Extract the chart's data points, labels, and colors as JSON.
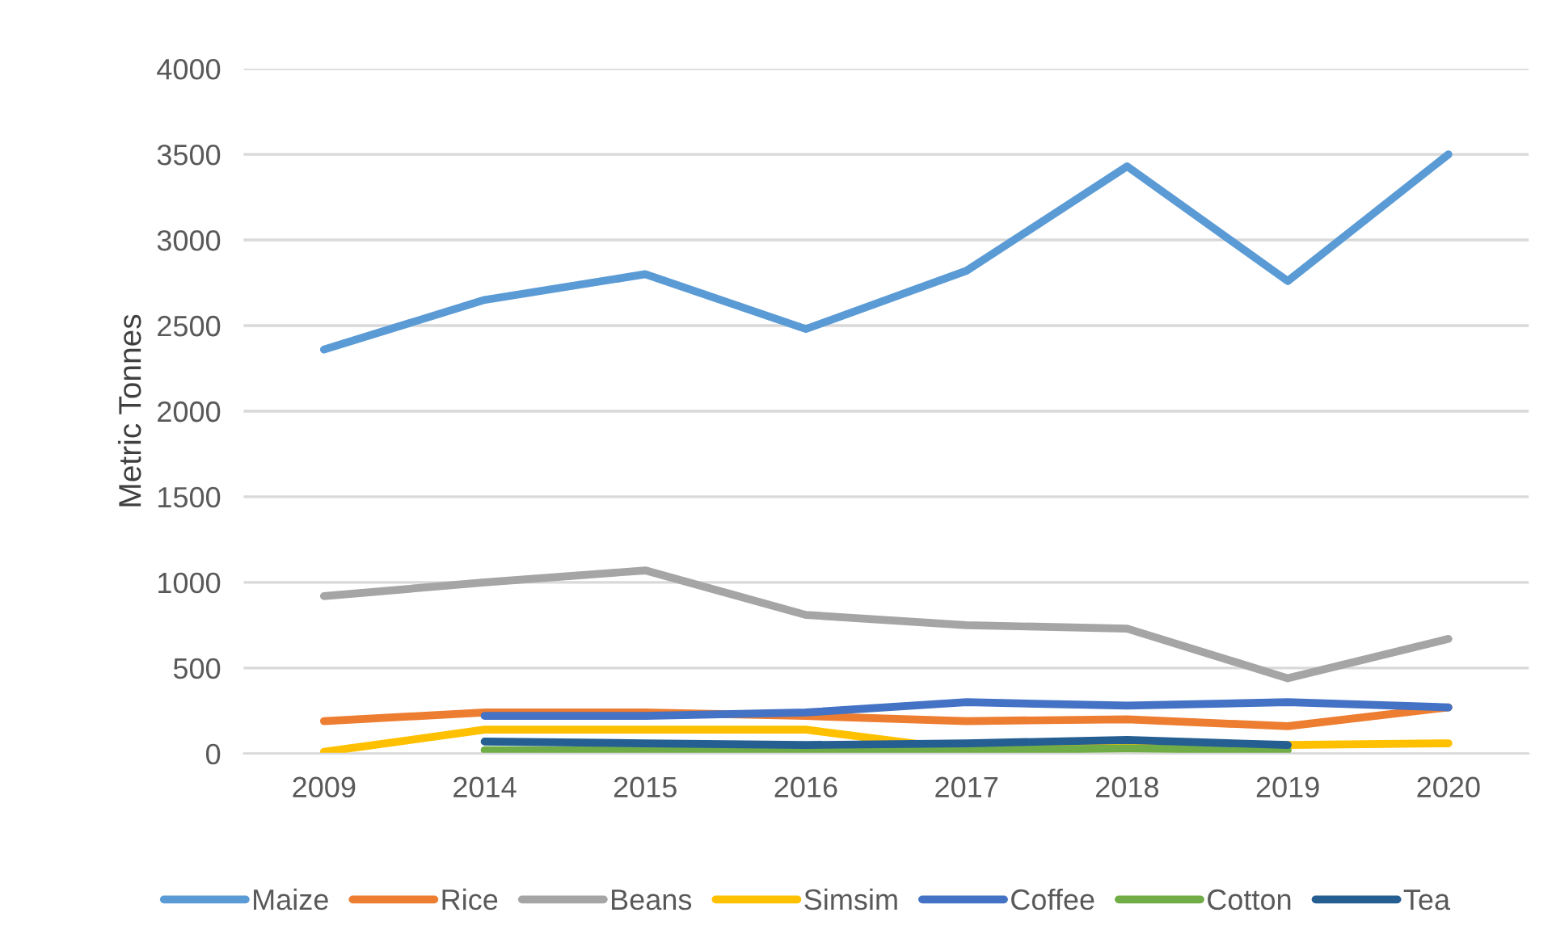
{
  "chart_data": {
    "type": "line",
    "ylabel": "Metric Tonnes",
    "categories": [
      "2009",
      "2014",
      "2015",
      "2016",
      "2017",
      "2018",
      "2019",
      "2020"
    ],
    "series": [
      {
        "name": "Maize",
        "color": "#5b9bd5",
        "values": [
          2360,
          2650,
          2800,
          2480,
          2820,
          3430,
          2760,
          3500
        ]
      },
      {
        "name": "Rice",
        "color": "#ed7d31",
        "values": [
          190,
          240,
          240,
          220,
          190,
          200,
          160,
          270
        ]
      },
      {
        "name": "Beans",
        "color": "#a5a5a5",
        "values": [
          920,
          1000,
          1070,
          810,
          750,
          730,
          440,
          670
        ]
      },
      {
        "name": "Simsim",
        "color": "#ffc000",
        "values": [
          10,
          140,
          140,
          140,
          20,
          40,
          50,
          60
        ]
      },
      {
        "name": "Coffee",
        "color": "#4472c4",
        "values": [
          null,
          220,
          220,
          240,
          300,
          280,
          300,
          270
        ]
      },
      {
        "name": "Cotton",
        "color": "#70ad47",
        "values": [
          null,
          20,
          20,
          20,
          20,
          30,
          20,
          null
        ]
      },
      {
        "name": "Tea",
        "color": "#255e91",
        "values": [
          null,
          70,
          60,
          50,
          60,
          80,
          50,
          null
        ]
      }
    ],
    "ylim": [
      0,
      4000
    ],
    "yticks": [
      0,
      500,
      1000,
      1500,
      2000,
      2500,
      3000,
      3500,
      4000
    ],
    "grid": "y",
    "legend": "bottom",
    "marker": "none",
    "line_style": "solid"
  }
}
